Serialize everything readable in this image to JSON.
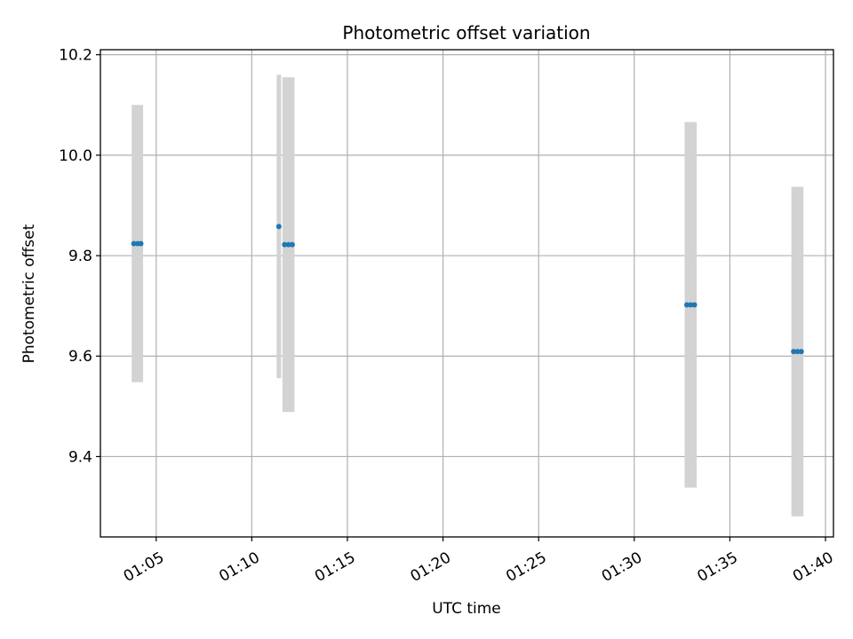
{
  "chart_data": {
    "type": "scatter",
    "title": "Photometric offset variation",
    "xlabel": "UTC time",
    "ylabel": "Photometric offset",
    "x_ticks": [
      "01:05",
      "01:10",
      "01:15",
      "01:20",
      "01:25",
      "01:30",
      "01:35",
      "01:40"
    ],
    "y_ticks": [
      9.4,
      9.6,
      9.8,
      10.0,
      10.2
    ],
    "xlim": [
      "01:02:05",
      "01:40:25"
    ],
    "ylim": [
      9.24,
      10.21
    ],
    "grid": true,
    "colors": {
      "points": "#1f77b4",
      "error_bars": "#d3d3d3"
    },
    "points": [
      {
        "x": "01:03:50",
        "y": 9.824,
        "yerr": 0.276
      },
      {
        "x": "01:04:02",
        "y": 9.824,
        "yerr": 0.276
      },
      {
        "x": "01:04:12",
        "y": 9.824,
        "yerr": 0.276
      },
      {
        "x": "01:11:25",
        "y": 9.858,
        "yerr": 0.302
      },
      {
        "x": "01:11:43",
        "y": 9.822,
        "yerr": 0.333
      },
      {
        "x": "01:11:55",
        "y": 9.822,
        "yerr": 0.333
      },
      {
        "x": "01:12:07",
        "y": 9.822,
        "yerr": 0.333
      },
      {
        "x": "01:32:45",
        "y": 9.702,
        "yerr": 0.364
      },
      {
        "x": "01:32:57",
        "y": 9.702,
        "yerr": 0.364
      },
      {
        "x": "01:33:09",
        "y": 9.702,
        "yerr": 0.364
      },
      {
        "x": "01:38:20",
        "y": 9.609,
        "yerr": 0.328
      },
      {
        "x": "01:38:32",
        "y": 9.609,
        "yerr": 0.328
      },
      {
        "x": "01:38:44",
        "y": 9.609,
        "yerr": 0.328
      }
    ]
  }
}
